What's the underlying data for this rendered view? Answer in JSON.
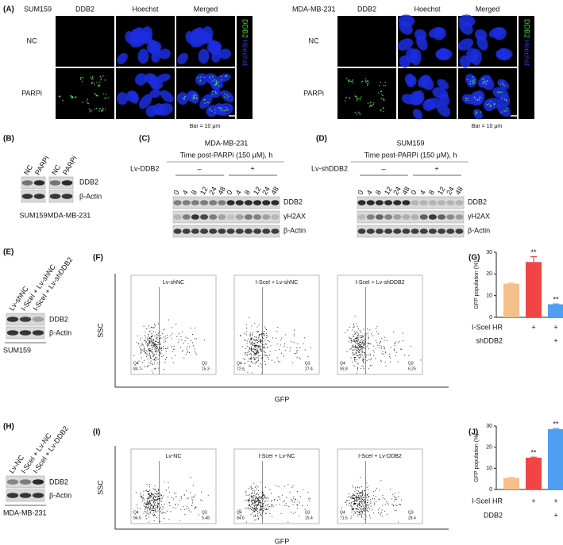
{
  "panel_a": {
    "label": "(A)",
    "scale_bar": "Bar = 10 μm",
    "channels": [
      "DDB2",
      "Hoechst",
      "Merged"
    ],
    "conditions": [
      "NC",
      "PARPi"
    ],
    "legend": [
      "DDB2",
      "Hoechst"
    ],
    "cell_lines": [
      "SUM159",
      "MDA-MB-231"
    ]
  },
  "panel_b": {
    "label": "(B)",
    "lanes": [
      "NC",
      "PARPi"
    ],
    "bands": [
      "DDB2",
      "β-Actin"
    ],
    "cell_lines": [
      "SUM159",
      "MDA-MB-231"
    ]
  },
  "panel_c": {
    "label": "(C)",
    "cell_line": "MDA-MB-231",
    "subtitle": "Time post-PARPi (150 μM), h",
    "treatment": "Lv-DDB2",
    "groups": [
      "–",
      "+"
    ],
    "times": [
      0,
      4,
      8,
      12,
      24,
      48
    ],
    "bands": [
      "DDB2",
      "γH2AX",
      "β-Actin"
    ]
  },
  "panel_d": {
    "label": "(D)",
    "cell_line": "SUM159",
    "subtitle": "Time post-PARPi (150 μM), h",
    "treatment": "Lv-shDDB2",
    "groups": [
      "–",
      "+"
    ],
    "times": [
      0,
      4,
      8,
      12,
      24,
      48
    ],
    "bands": [
      "DDB2",
      "γH2AX",
      "β-Actin"
    ]
  },
  "panel_e": {
    "label": "(E)",
    "lanes": [
      "Lv-shNC",
      "I-SceI + Lv-shNC",
      "I-SceI + Lv-shDDB2"
    ],
    "bands": [
      "DDB2",
      "β-Actin"
    ],
    "cell_line": "SUM159"
  },
  "panel_f": {
    "label": "(F)",
    "x_label": "GFP",
    "y_label": "SSC",
    "gates": [
      "Q4",
      "Q3"
    ],
    "plots": [
      {
        "title": "Lv-shNC",
        "q4": 84.7,
        "q3": 15.3
      },
      {
        "title": "I-SceI + Lv-shNC",
        "q4": 72.6,
        "q3": 27.4
      },
      {
        "title": "I-SceI + Lv-shDDB2",
        "q4": 93.8,
        "q3": 6.25
      }
    ]
  },
  "panel_h": {
    "label": "(H)",
    "lanes": [
      "Lv-NC",
      "I-SceI + Lv-NC",
      "I-SceI + Lv-DDB2"
    ],
    "bands": [
      "DDB2",
      "β-Actin"
    ],
    "cell_line": "MDA-MB-231"
  },
  "panel_i": {
    "label": "(I)",
    "x_label": "GFP",
    "y_label": "SSC",
    "gates": [
      "Q4",
      "Q3"
    ],
    "plots": [
      {
        "title": "Lv-NC",
        "q4": 94.5,
        "q3": 5.48
      },
      {
        "title": "I-SceI + Lv-NC",
        "q4": 84.6,
        "q3": 15.4
      },
      {
        "title": "I-SceI + Lv-DDB2",
        "q4": 71.6,
        "q3": 28.4
      }
    ]
  },
  "chart_data": [
    {
      "type": "bar",
      "panel_label": "(G)",
      "y_label": "GFP population (%)",
      "values": [
        15.5,
        25.5,
        6
      ],
      "errors": [
        0.3,
        2.5,
        0.2
      ],
      "colors": [
        "#f5c08a",
        "#f04545",
        "#4f9ef0"
      ],
      "annotations": [
        null,
        "**",
        "**"
      ],
      "ylim": [
        0,
        30
      ],
      "yticks": [
        0,
        10,
        20,
        30
      ],
      "conditions": [
        {
          "name": "I-SceI HR",
          "marks": [
            null,
            "+",
            "+"
          ]
        },
        {
          "name": "shDDB2",
          "marks": [
            null,
            null,
            "+"
          ]
        }
      ]
    },
    {
      "type": "bar",
      "panel_label": "(J)",
      "y_label": "GFP population (%)",
      "values": [
        5.5,
        15,
        28.5
      ],
      "errors": [
        0.2,
        0.3,
        0.3
      ],
      "colors": [
        "#f5c08a",
        "#f04545",
        "#4f9ef0"
      ],
      "annotations": [
        null,
        "**",
        "**"
      ],
      "ylim": [
        0,
        30
      ],
      "yticks": [
        0,
        10,
        20,
        30
      ],
      "conditions": [
        {
          "name": "I-SceI HR",
          "marks": [
            null,
            "+",
            "+"
          ]
        },
        {
          "name": "DDB2",
          "marks": [
            null,
            null,
            "+"
          ]
        }
      ]
    }
  ]
}
